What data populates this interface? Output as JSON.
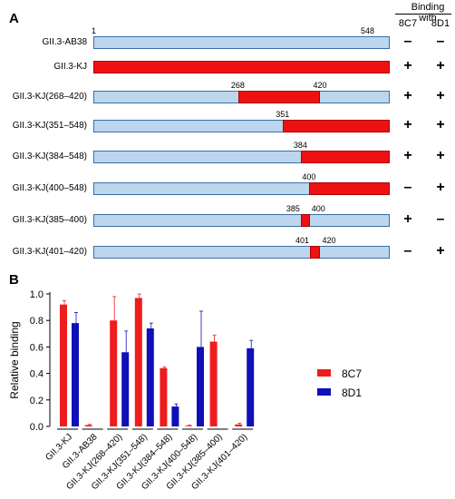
{
  "panel_a": {
    "letter": "A",
    "header": {
      "title": "Binding with",
      "col1": "8C7",
      "col2": "8D1"
    },
    "rows": [
      {
        "label": "GII.3-AB38",
        "red": null,
        "red_start_pct": 0,
        "red_end_pct": 0,
        "nums": [
          "1",
          "548"
        ],
        "b8c7": "–",
        "b8d1": "–"
      },
      {
        "label": "GII.3-KJ",
        "red": "full",
        "red_start_pct": 0,
        "red_end_pct": 100,
        "nums": [],
        "b8c7": "+",
        "b8d1": "+"
      },
      {
        "label": "GII.3-KJ(268–420)",
        "red": "part",
        "red_start_pct": 48.9,
        "red_end_pct": 76.6,
        "nums": [
          "268",
          "420"
        ],
        "b8c7": "+",
        "b8d1": "+"
      },
      {
        "label": "GII.3-KJ(351–548)",
        "red": "part",
        "red_start_pct": 64.0,
        "red_end_pct": 100,
        "nums": [
          "351"
        ],
        "b8c7": "+",
        "b8d1": "+"
      },
      {
        "label": "GII.3-KJ(384–548)",
        "red": "part",
        "red_start_pct": 70.0,
        "red_end_pct": 100,
        "nums": [
          "384"
        ],
        "b8c7": "+",
        "b8d1": "+"
      },
      {
        "label": "GII.3-KJ(400–548)",
        "red": "part",
        "red_start_pct": 72.9,
        "red_end_pct": 100,
        "nums": [
          "400"
        ],
        "b8c7": "–",
        "b8d1": "+"
      },
      {
        "label": "GII.3-KJ(385–400)",
        "red": "part",
        "red_start_pct": 70.0,
        "red_end_pct": 73.0,
        "nums": [
          "385",
          "400"
        ],
        "b8c7": "+",
        "b8d1": "–"
      },
      {
        "label": "GII.3-KJ(401–420)",
        "red": "part",
        "red_start_pct": 73.1,
        "red_end_pct": 76.6,
        "nums": [
          "401",
          "420"
        ],
        "b8c7": "–",
        "b8d1": "+"
      }
    ]
  },
  "panel_b": {
    "letter": "B"
  },
  "chart_data": {
    "type": "bar",
    "ylabel": "Relative binding",
    "ylim": [
      0,
      1.0
    ],
    "yticks": [
      "0.0",
      "0.2",
      "0.4",
      "0.6",
      "0.8",
      "1.0"
    ],
    "categories": [
      "GII.3-KJ",
      "GII.3-AB38",
      "GII.3-KJ(268–420)",
      "GII.3-KJ(351–548)",
      "GII.3-KJ(384–548)",
      "GII.3-KJ(400–548)",
      "GII.3-KJ(385–400)",
      "GII.3-KJ(401–420)"
    ],
    "series": [
      {
        "name": "8C7",
        "color": "#ee1c1c",
        "values": [
          0.92,
          0.01,
          0.8,
          0.97,
          0.44,
          0.005,
          0.64,
          0.015
        ],
        "errors": [
          0.03,
          0.005,
          0.18,
          0.03,
          0.01,
          0.005,
          0.05,
          0.01
        ]
      },
      {
        "name": "8D1",
        "color": "#1010b8",
        "values": [
          0.78,
          0.0,
          0.56,
          0.74,
          0.15,
          0.6,
          0.0,
          0.59
        ],
        "errors": [
          0.08,
          0.0,
          0.16,
          0.04,
          0.02,
          0.27,
          0.0,
          0.06
        ]
      }
    ],
    "legend": "right"
  }
}
